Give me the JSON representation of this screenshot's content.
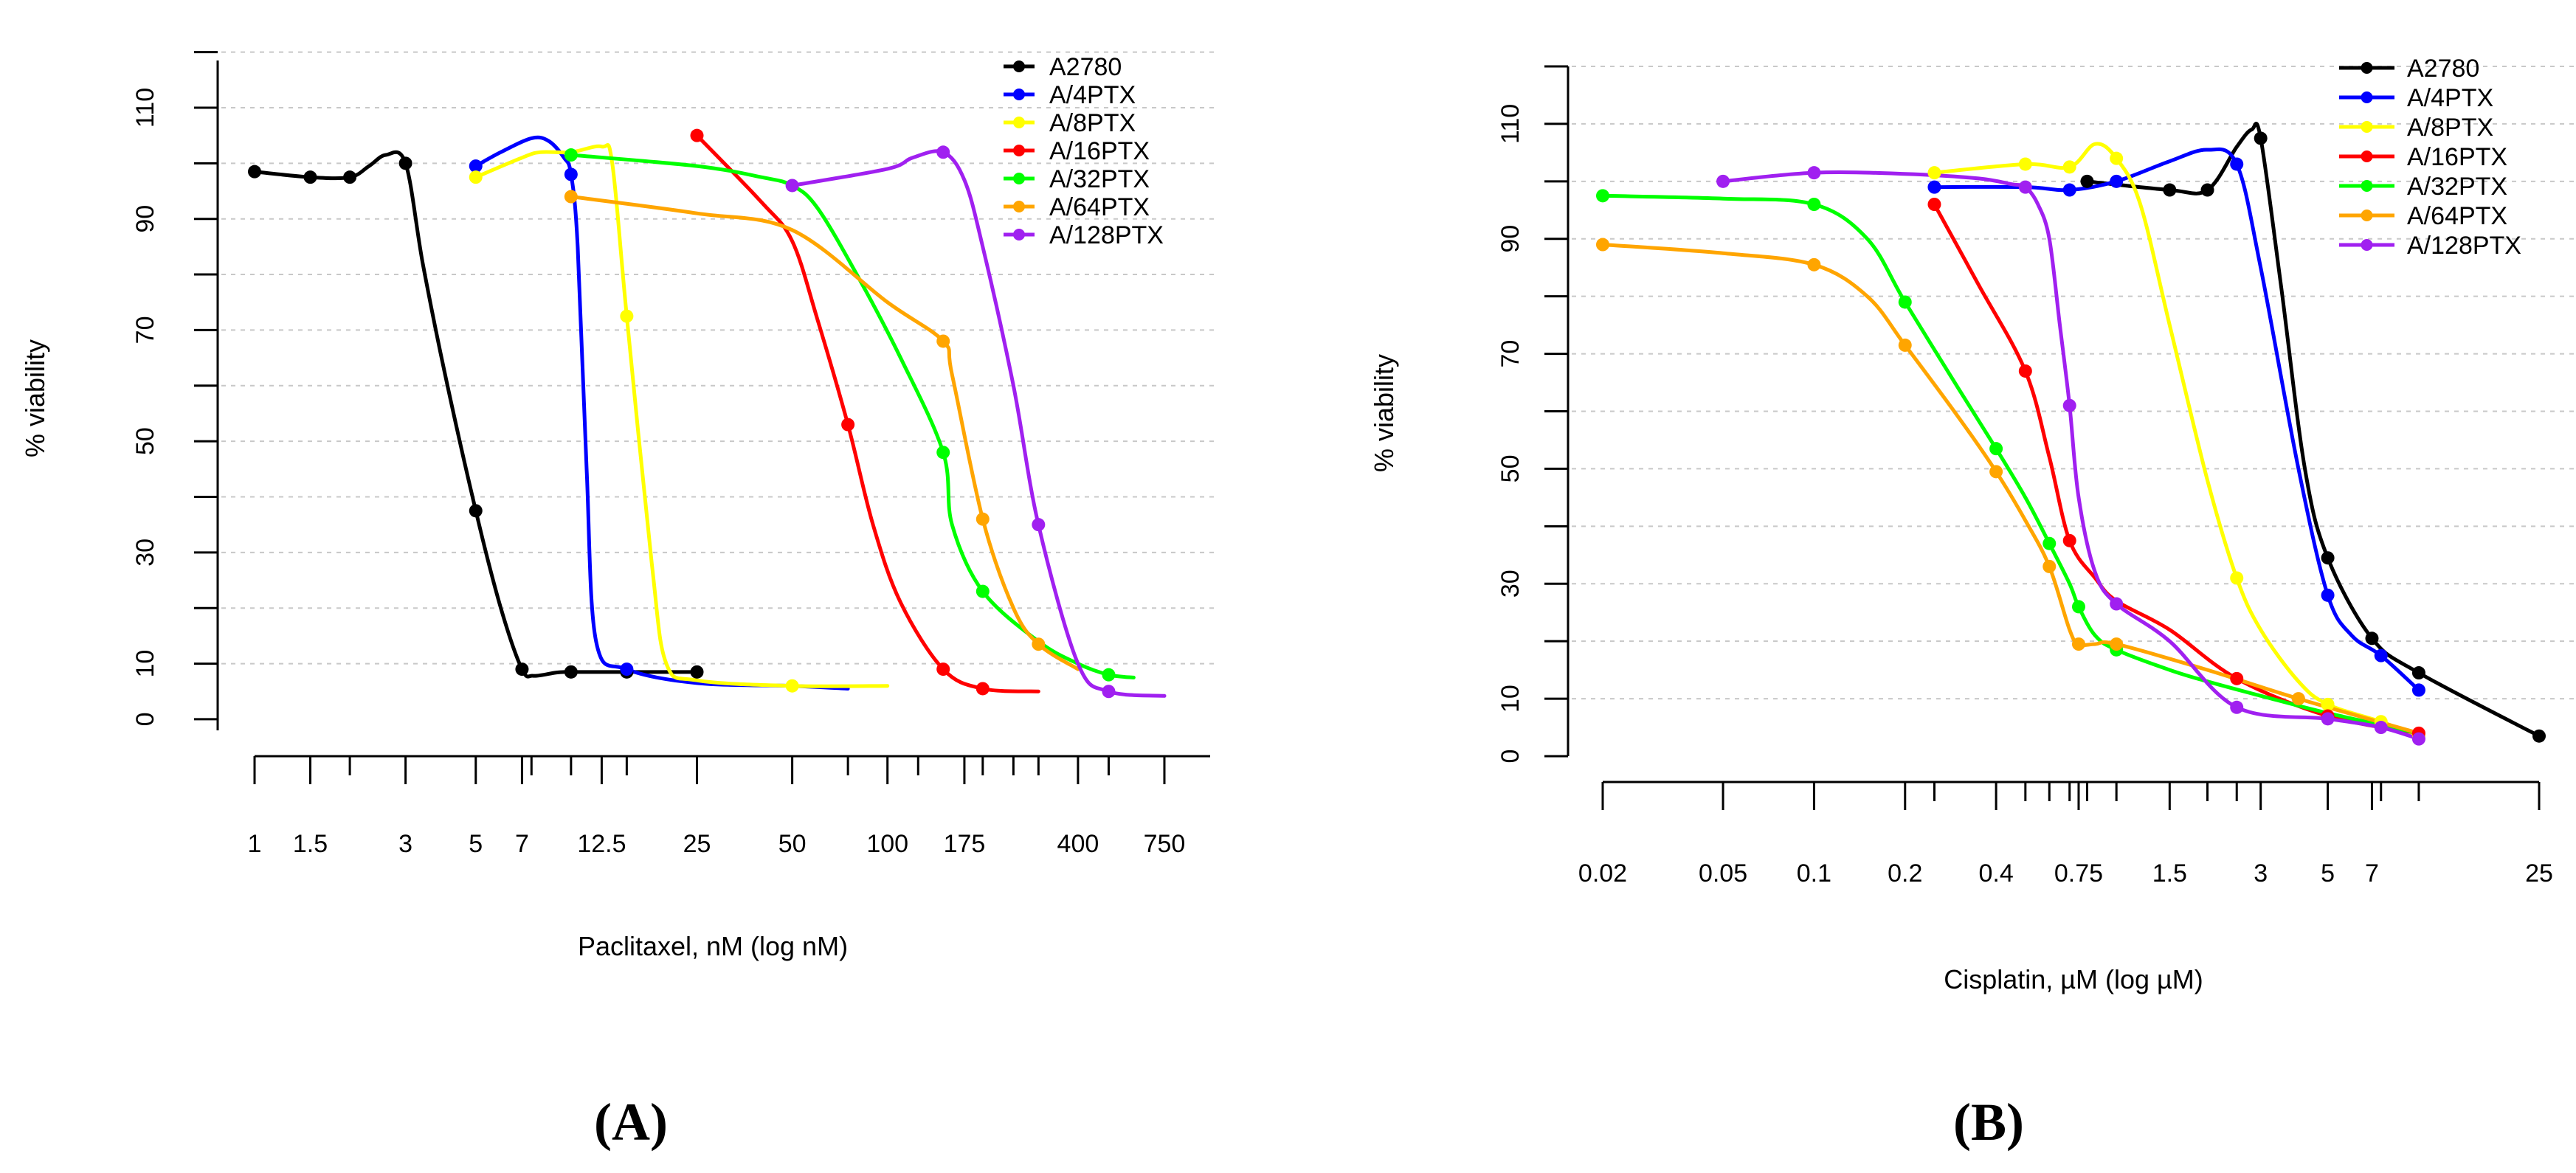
{
  "chart_data": [
    {
      "panel": "(A)",
      "type": "line",
      "xlabel": "Paclitaxel, nM (log nM)",
      "ylabel": "% viability",
      "x_scale": "log",
      "xlim": [
        1,
        800
      ],
      "ylim": [
        -2,
        123
      ],
      "x_tick_labels": [
        {
          "value": 1,
          "label": "1"
        },
        {
          "value": 1.5,
          "label": "1.5"
        },
        {
          "value": 3,
          "label": "3"
        },
        {
          "value": 5,
          "label": "5"
        },
        {
          "value": 7,
          "label": "7"
        },
        {
          "value": 12.5,
          "label": "12.5"
        },
        {
          "value": 25,
          "label": "25"
        },
        {
          "value": 50,
          "label": "50"
        },
        {
          "value": 100,
          "label": "100"
        },
        {
          "value": 175,
          "label": "175"
        },
        {
          "value": 400,
          "label": "400"
        },
        {
          "value": 750,
          "label": "750"
        }
      ],
      "x_minor_ticks": [
        2,
        7.5,
        10,
        15,
        75,
        125,
        200,
        250,
        300,
        500
      ],
      "y_tick_labels": [
        {
          "value": 0,
          "label": "0"
        },
        {
          "value": 10,
          "label": "10"
        },
        {
          "value": 30,
          "label": "30"
        },
        {
          "value": 50,
          "label": "50"
        },
        {
          "value": 70,
          "label": "70"
        },
        {
          "value": 90,
          "label": "90"
        },
        {
          "value": 110,
          "label": "110"
        }
      ],
      "y_minor_ticks": [
        20,
        40,
        60,
        80,
        100,
        120
      ],
      "gridlines": [
        10,
        20,
        30,
        40,
        50,
        60,
        70,
        80,
        90,
        100,
        110,
        120
      ],
      "legend_position": "top-right",
      "series": [
        {
          "name": "A2780",
          "color": "#000000",
          "x": [
            1,
            1.5,
            2,
            3,
            5,
            7,
            10,
            15,
            25
          ],
          "y": [
            98.5,
            97.5,
            97.5,
            100,
            37.5,
            9,
            8.5,
            8.5,
            8.5
          ],
          "curve_x": [
            1,
            1.5,
            2,
            2.3,
            2.6,
            3,
            3.4,
            4,
            5,
            6,
            7,
            7.6,
            9,
            10,
            15,
            25
          ],
          "curve_y": [
            98.5,
            97.5,
            97.5,
            99.5,
            101.5,
            100,
            82,
            62,
            37.5,
            20,
            9,
            7.8,
            8.4,
            8.5,
            8.5,
            8.5
          ]
        },
        {
          "name": "A/4PTX",
          "color": "#0000ff",
          "x": [
            5,
            10,
            15
          ],
          "y": [
            99.5,
            98,
            9
          ],
          "curve_x": [
            5,
            6,
            7.5,
            8.5,
            9.5,
            10,
            10.5,
            11.2,
            12,
            15,
            25,
            50,
            75
          ],
          "curve_y": [
            99.5,
            102,
            104.5,
            104,
            101,
            98,
            85,
            45,
            14,
            9,
            6.5,
            6,
            5.5
          ]
        },
        {
          "name": "A/8PTX",
          "color": "#ffff00",
          "x": [
            5,
            15,
            50
          ],
          "y": [
            97.5,
            72.5,
            6
          ],
          "curve_x": [
            5,
            7,
            8,
            10,
            12.5,
            13.5,
            15,
            18,
            20,
            25,
            50,
            100
          ],
          "curve_y": [
            97.5,
            101,
            102,
            102,
            103,
            100,
            72.5,
            28,
            10,
            7,
            6,
            6
          ]
        },
        {
          "name": "A/16PTX",
          "color": "#ff0000",
          "x": [
            25,
            75,
            150,
            200
          ],
          "y": [
            105,
            53,
            9,
            5.5
          ],
          "curve_x": [
            25,
            40,
            50,
            60,
            75,
            90,
            110,
            150,
            200,
            300
          ],
          "curve_y": [
            105,
            93,
            86,
            72,
            53,
            35,
            21,
            9,
            5.5,
            5
          ]
        },
        {
          "name": "A/32PTX",
          "color": "#00ff00",
          "x": [
            10,
            150,
            200,
            500
          ],
          "y": [
            101.5,
            48,
            23,
            8
          ],
          "curve_x": [
            10,
            25,
            40,
            50,
            60,
            80,
            110,
            150,
            160,
            200,
            300,
            400,
            500,
            600
          ],
          "curve_y": [
            101.5,
            99.5,
            97.5,
            96,
            92,
            80,
            65,
            48,
            35,
            23,
            14,
            10,
            8,
            7.5
          ]
        },
        {
          "name": "A/64PTX",
          "color": "#ffa500",
          "x": [
            10,
            150,
            200,
            300
          ],
          "y": [
            94,
            68,
            36,
            13.5
          ],
          "curve_x": [
            10,
            25,
            50,
            100,
            150,
            160,
            200,
            250,
            300,
            400
          ],
          "curve_y": [
            94,
            91,
            88,
            75,
            68,
            62,
            36,
            20,
            13.5,
            9
          ]
        },
        {
          "name": "A/128PTX",
          "color": "#a020f0",
          "x": [
            50,
            150,
            300,
            500
          ],
          "y": [
            96,
            102,
            35,
            5
          ],
          "curve_x": [
            50,
            100,
            120,
            150,
            175,
            200,
            250,
            300,
            400,
            500,
            750
          ],
          "curve_y": [
            96,
            99,
            101,
            102,
            97,
            85,
            60,
            35,
            10,
            5,
            4.2
          ]
        }
      ]
    },
    {
      "panel": "(B)",
      "type": "line",
      "xlabel": "Cisplatin, µM (log µM)",
      "ylabel": "% viability",
      "x_scale": "log",
      "xlim": [
        0.02,
        25
      ],
      "ylim": [
        0,
        120
      ],
      "x_tick_labels": [
        {
          "value": 0.02,
          "label": "0.02"
        },
        {
          "value": 0.05,
          "label": "0.05"
        },
        {
          "value": 0.1,
          "label": "0.1"
        },
        {
          "value": 0.2,
          "label": "0.2"
        },
        {
          "value": 0.4,
          "label": "0.4"
        },
        {
          "value": 0.75,
          "label": "0.75"
        },
        {
          "value": 1.5,
          "label": "1.5"
        },
        {
          "value": 3,
          "label": "3"
        },
        {
          "value": 5,
          "label": "5"
        },
        {
          "value": 7,
          "label": "7"
        },
        {
          "value": 25,
          "label": "25"
        }
      ],
      "x_minor_ticks": [
        0.25,
        0.5,
        0.6,
        0.7,
        0.8,
        1,
        2,
        2.5,
        7.5,
        10
      ],
      "y_tick_labels": [
        {
          "value": 0,
          "label": "0"
        },
        {
          "value": 10,
          "label": "10"
        },
        {
          "value": 30,
          "label": "30"
        },
        {
          "value": 50,
          "label": "50"
        },
        {
          "value": 70,
          "label": "70"
        },
        {
          "value": 90,
          "label": "90"
        },
        {
          "value": 110,
          "label": "110"
        }
      ],
      "y_minor_ticks": [
        20,
        40,
        60,
        80,
        100,
        120
      ],
      "gridlines": [
        10,
        20,
        30,
        40,
        50,
        60,
        70,
        80,
        90,
        100,
        110,
        120
      ],
      "legend_position": "top-right",
      "series": [
        {
          "name": "A2780",
          "color": "#000000",
          "x": [
            0.8,
            1.5,
            2,
            3,
            5,
            7,
            10,
            25
          ],
          "y": [
            100,
            98.5,
            98.5,
            107.5,
            34.5,
            20.5,
            14.5,
            3.5
          ],
          "curve_x": [
            0.8,
            1.5,
            2,
            2.5,
            2.8,
            3,
            3.5,
            4.2,
            5,
            7,
            10,
            25
          ],
          "curve_y": [
            100,
            98.5,
            98.5,
            106,
            109,
            107.5,
            82,
            50,
            34.5,
            20.5,
            14.5,
            3.5
          ]
        },
        {
          "name": "A/4PTX",
          "color": "#0000ff",
          "x": [
            0.25,
            0.7,
            1,
            2.5,
            5,
            7.5,
            10
          ],
          "y": [
            99,
            98.5,
            100,
            103,
            28,
            17.5,
            11.5
          ],
          "curve_x": [
            0.25,
            0.5,
            0.7,
            1,
            1.5,
            2,
            2.5,
            3,
            4,
            5,
            6,
            7.5,
            10
          ],
          "curve_y": [
            99,
            99,
            98.5,
            100,
            103.5,
            105.5,
            103,
            85,
            50,
            28,
            21,
            17.5,
            11.5
          ]
        },
        {
          "name": "A/8PTX",
          "color": "#ffff00",
          "x": [
            0.25,
            0.5,
            0.7,
            1,
            2.5,
            5,
            7.5,
            10
          ],
          "y": [
            101.5,
            103,
            102.5,
            104,
            31,
            9,
            6,
            3.5
          ],
          "curve_x": [
            0.25,
            0.5,
            0.7,
            0.85,
            1,
            1.2,
            1.5,
            2,
            2.5,
            3,
            4,
            5,
            7.5,
            10
          ],
          "curve_y": [
            101.5,
            103,
            102.5,
            106.5,
            104,
            96,
            75,
            48,
            31,
            22,
            13,
            9,
            6,
            3.5
          ]
        },
        {
          "name": "A/16PTX",
          "color": "#ff0000",
          "x": [
            0.25,
            0.5,
            0.7,
            2.5,
            5,
            10
          ],
          "y": [
            96,
            67,
            37.5,
            13.5,
            7,
            4
          ],
          "curve_x": [
            0.25,
            0.35,
            0.5,
            0.6,
            0.7,
            0.85,
            1,
            1.5,
            2.5,
            5,
            10
          ],
          "curve_y": [
            96,
            82,
            67,
            52,
            37.5,
            31,
            27,
            22,
            13.5,
            7,
            4
          ]
        },
        {
          "name": "A/32PTX",
          "color": "#00ff00",
          "x": [
            0.02,
            0.1,
            0.2,
            0.4,
            0.6,
            0.75,
            1
          ],
          "y": [
            97.5,
            96,
            79,
            53.5,
            37,
            26,
            18.5
          ],
          "curve_x": [
            0.02,
            0.05,
            0.1,
            0.15,
            0.2,
            0.3,
            0.4,
            0.5,
            0.6,
            0.7,
            0.75,
            0.85,
            1,
            1.5,
            2,
            3,
            5,
            10
          ],
          "curve_y": [
            97.5,
            97,
            96,
            90,
            79,
            64,
            53.5,
            45,
            37,
            30,
            26,
            21,
            18.5,
            15,
            13,
            10.5,
            7.5,
            4
          ]
        },
        {
          "name": "A/64PTX",
          "color": "#ffa500",
          "x": [
            0.02,
            0.1,
            0.2,
            0.4,
            0.6,
            0.75,
            1,
            4
          ],
          "y": [
            89,
            85.5,
            71.5,
            49.5,
            33,
            19.5,
            19.5,
            10
          ],
          "curve_x": [
            0.02,
            0.05,
            0.1,
            0.15,
            0.2,
            0.3,
            0.4,
            0.5,
            0.6,
            0.7,
            0.75,
            0.85,
            1,
            2,
            4,
            10
          ],
          "curve_y": [
            89,
            87.5,
            85.5,
            80,
            71.5,
            59,
            49.5,
            41,
            33,
            22,
            19.5,
            19.5,
            19.5,
            15,
            10,
            4
          ]
        },
        {
          "name": "A/128PTX",
          "color": "#a020f0",
          "x": [
            0.05,
            0.1,
            0.5,
            0.7,
            1,
            2.5,
            5,
            7.5,
            10
          ],
          "y": [
            100,
            101.5,
            99,
            61,
            26.5,
            8.5,
            6.5,
            5,
            3
          ],
          "curve_x": [
            0.05,
            0.1,
            0.2,
            0.35,
            0.45,
            0.5,
            0.55,
            0.6,
            0.65,
            0.7,
            0.75,
            0.85,
            1,
            1.5,
            2.5,
            5,
            7.5,
            10
          ],
          "curve_y": [
            100,
            101.5,
            101.3,
            100.5,
            99.5,
            99,
            96,
            90,
            75,
            61,
            45,
            32,
            26.5,
            20,
            8.5,
            6.5,
            5,
            3
          ]
        }
      ]
    }
  ]
}
